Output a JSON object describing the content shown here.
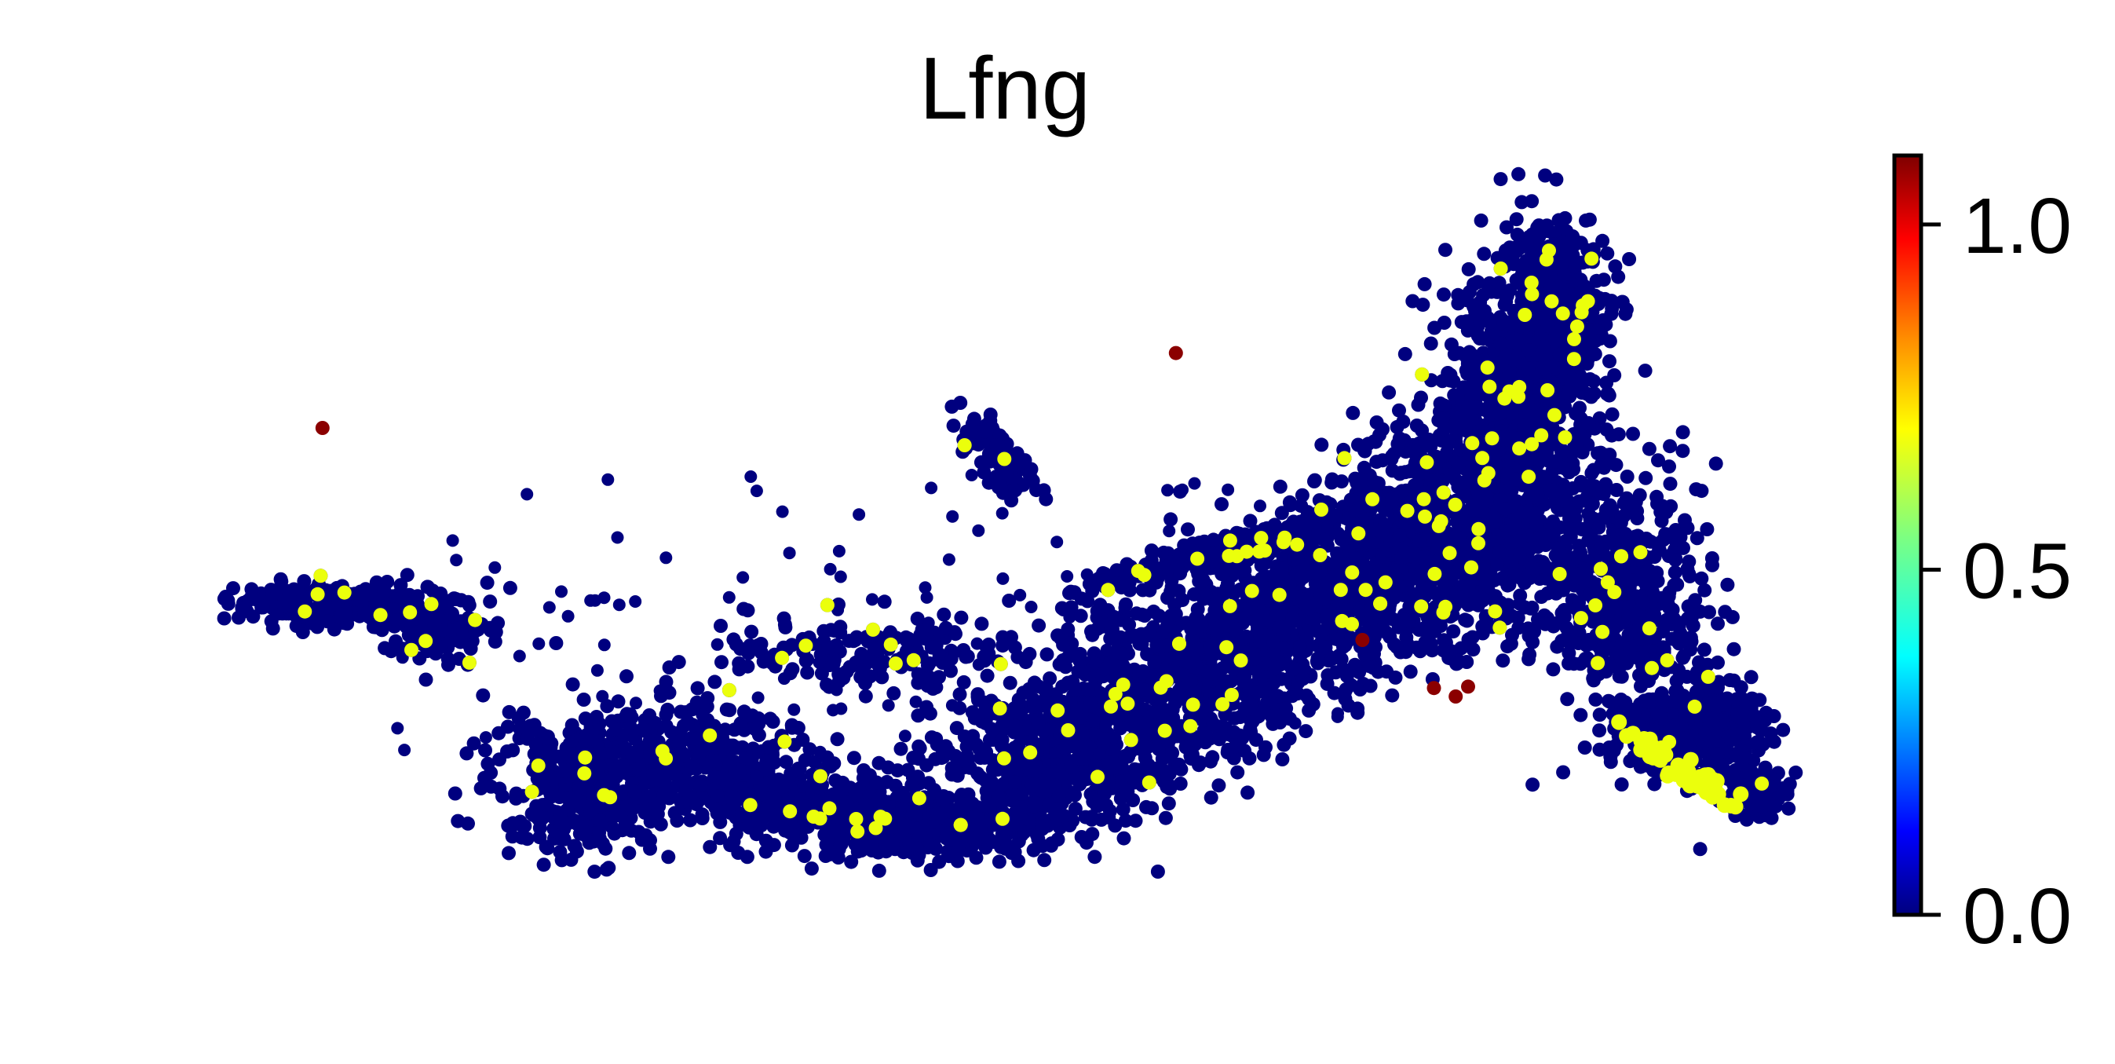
{
  "chart_data": {
    "type": "scatter",
    "title": "Lfng",
    "xlabel": "",
    "ylabel": "",
    "axes_visible": false,
    "grid": false,
    "point_color_scale": "jet",
    "colorbar": {
      "placement": "right",
      "range": [
        0.0,
        1.1
      ],
      "ticks": [
        0.0,
        0.5,
        1.0
      ],
      "tick_labels": [
        "0.0",
        "0.5",
        "1.0"
      ]
    },
    "colors": {
      "low": "#00007f",
      "mid": "#ebff0c",
      "high": "#8b0000"
    },
    "description_of_density": "dense embedding cloud, mostly low expression (0.0) with scattered points near 0.7 and a few near 1.1",
    "x_range": [
      0,
      100
    ],
    "y_range": [
      0,
      50
    ],
    "highlight_points": [
      {
        "x": 6.1,
        "y": 32.5,
        "value": 1.1
      },
      {
        "x": 61.0,
        "y": 37.8,
        "value": 1.1
      },
      {
        "x": 73.0,
        "y": 17.5,
        "value": 1.1
      },
      {
        "x": 77.6,
        "y": 14.1,
        "value": 1.1
      },
      {
        "x": 79.0,
        "y": 13.5,
        "value": 1.1
      },
      {
        "x": 79.8,
        "y": 14.2,
        "value": 1.1
      }
    ]
  }
}
